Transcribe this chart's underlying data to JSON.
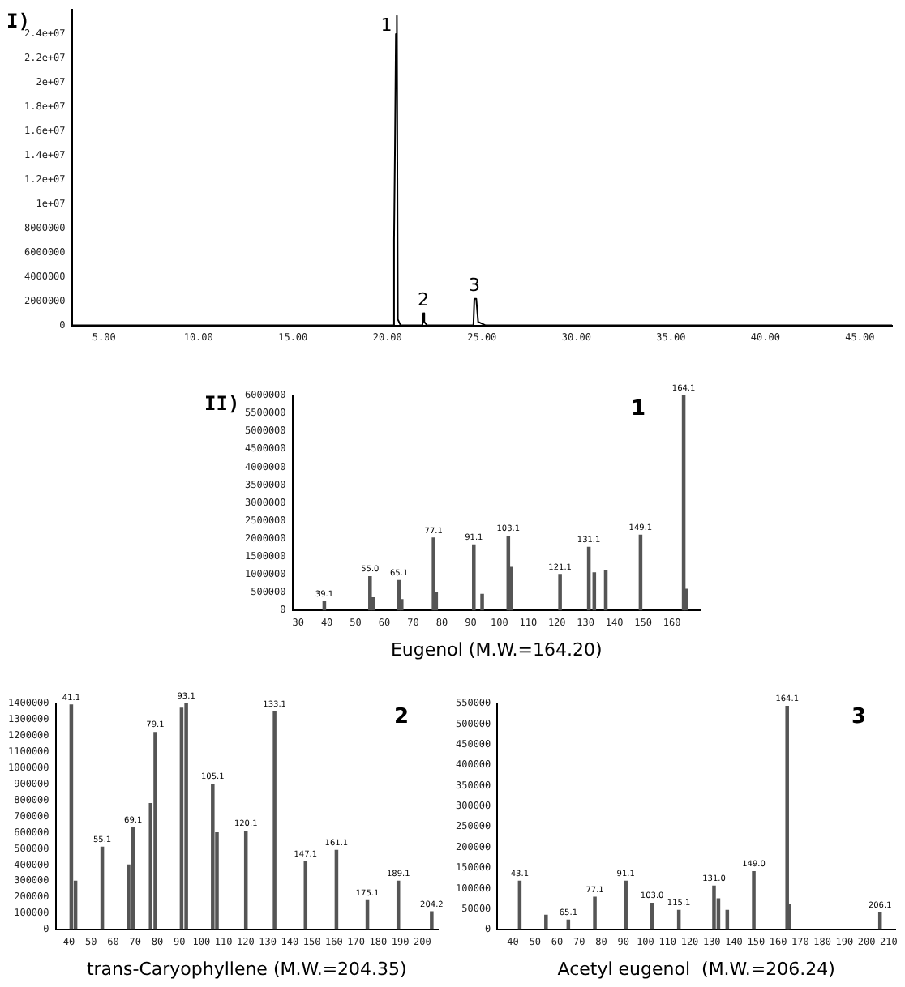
{
  "chart_data": [
    {
      "type": "line",
      "title": "I)",
      "x": [
        3.3,
        20.3,
        20.35,
        20.4,
        20.45,
        20.5,
        20.55,
        20.7,
        21.85,
        21.9,
        21.95,
        22.1,
        24.55,
        24.6,
        24.7,
        24.8,
        25.2,
        46.7
      ],
      "series": [
        {
          "color": "#000000",
          "values": [
            0,
            0,
            7000000,
            14700000,
            24000000,
            25500000,
            500000,
            0,
            0,
            1000000,
            300000,
            0,
            0,
            2200000,
            2200000,
            300000,
            0,
            0
          ]
        }
      ],
      "xlim": [
        3.3,
        46.7
      ],
      "xticks": [
        {
          "value": 5,
          "label": "5.00"
        },
        {
          "value": 10,
          "label": "10.00"
        },
        {
          "value": 15,
          "label": "15.00"
        },
        {
          "value": 20,
          "label": "20.00"
        },
        {
          "value": 25,
          "label": "25.00"
        },
        {
          "value": 30,
          "label": "30.00"
        },
        {
          "value": 35,
          "label": "35.00"
        },
        {
          "value": 40,
          "label": "40.00"
        },
        {
          "value": 45,
          "label": "45.00"
        }
      ],
      "ylim": [
        0,
        26000000
      ],
      "yticks": [
        0,
        2000000,
        4000000,
        6000000,
        8000000,
        {
          "value": 10000000,
          "label": "1e+07"
        },
        {
          "value": 12000000,
          "label": "1.2e+07"
        },
        {
          "value": 14000000,
          "label": "1.4e+07"
        },
        {
          "value": 16000000,
          "label": "1.6e+07"
        },
        {
          "value": 18000000,
          "label": "1.8e+07"
        },
        {
          "value": 20000000,
          "label": "2e+07"
        },
        {
          "value": 22000000,
          "label": "2.2e+07"
        },
        {
          "value": 24000000,
          "label": "2.4e+07"
        }
      ],
      "annotations": [
        {
          "text": "1",
          "x": 20.5,
          "y": 25500000
        },
        {
          "text": "2",
          "x": 21.9,
          "y": 1000000
        },
        {
          "text": "3",
          "x": 24.6,
          "y": 2200000
        }
      ],
      "legend": false,
      "grid": false
    },
    {
      "type": "bar",
      "title": "II)",
      "xlabel": "Eugenol (M.W.=164.20)",
      "x": [
        39.1,
        55.0,
        56,
        65.1,
        66,
        77.1,
        78,
        91.1,
        94,
        103.1,
        104,
        121.1,
        131.1,
        133,
        137,
        149.1,
        164.1,
        165
      ],
      "values": [
        240000,
        940000,
        350000,
        830000,
        300000,
        2020000,
        500000,
        1830000,
        450000,
        2070000,
        1200000,
        1000000,
        1760000,
        1050000,
        1100000,
        2100000,
        6000000,
        590000
      ],
      "color": "#555555",
      "xlim": [
        28,
        170
      ],
      "xticks": [
        30,
        40,
        50,
        60,
        70,
        80,
        90,
        100,
        110,
        120,
        130,
        140,
        150,
        160
      ],
      "ylim": [
        0,
        6000000
      ],
      "yticks": [
        0,
        500000,
        1000000,
        1500000,
        2000000,
        2500000,
        3000000,
        3500000,
        4000000,
        4500000,
        5000000,
        5500000,
        6000000
      ],
      "annotations": [
        "1",
        {
          "text": "39.1",
          "x": 39.1,
          "y": 240000
        },
        {
          "text": "55.0",
          "x": 55.0,
          "y": 940000
        },
        {
          "text": "65.1",
          "x": 65.1,
          "y": 830000
        },
        {
          "text": "77.1",
          "x": 77.1,
          "y": 2020000
        },
        {
          "text": "91.1",
          "x": 91.1,
          "y": 1830000
        },
        {
          "text": "103.1",
          "x": 103.1,
          "y": 2070000
        },
        {
          "text": "121.1",
          "x": 121.1,
          "y": 1000000
        },
        {
          "text": "131.1",
          "x": 131.1,
          "y": 1760000
        },
        {
          "text": "149.1",
          "x": 149.1,
          "y": 2100000
        },
        {
          "text": "164.1",
          "x": 164.1,
          "y": 6000000
        }
      ],
      "legend": false,
      "grid": false
    },
    {
      "type": "bar",
      "xlabel": "trans-Caryophyllene (M.W.=204.35)",
      "x": [
        41.1,
        43,
        55.1,
        67,
        69.1,
        77,
        79.1,
        91,
        93.1,
        105.1,
        107,
        120.1,
        133.1,
        147.1,
        161.1,
        175.1,
        189.1,
        204.2
      ],
      "values": [
        1390000,
        300000,
        510000,
        400000,
        630000,
        780000,
        1220000,
        1370000,
        1400000,
        900000,
        600000,
        610000,
        1350000,
        420000,
        490000,
        180000,
        300000,
        110000
      ],
      "color": "#555555",
      "xlim": [
        34,
        207
      ],
      "xticks": [
        40,
        50,
        60,
        70,
        80,
        90,
        100,
        110,
        120,
        130,
        140,
        150,
        160,
        170,
        180,
        190,
        200
      ],
      "ylim": [
        0,
        1400000
      ],
      "yticks": [
        0,
        100000,
        200000,
        300000,
        400000,
        500000,
        600000,
        700000,
        800000,
        900000,
        1000000,
        1100000,
        1200000,
        1300000,
        1400000
      ],
      "annotations": [
        "2",
        {
          "text": "41.1",
          "x": 41.1,
          "y": 1390000
        },
        {
          "text": "55.1",
          "x": 55.1,
          "y": 510000
        },
        {
          "text": "69.1",
          "x": 69.1,
          "y": 630000
        },
        {
          "text": "79.1",
          "x": 79.1,
          "y": 1220000
        },
        {
          "text": "93.1",
          "x": 93.1,
          "y": 1400000
        },
        {
          "text": "105.1",
          "x": 105.1,
          "y": 900000
        },
        {
          "text": "120.1",
          "x": 120.1,
          "y": 610000
        },
        {
          "text": "133.1",
          "x": 133.1,
          "y": 1350000
        },
        {
          "text": "147.1",
          "x": 147.1,
          "y": 420000
        },
        {
          "text": "161.1",
          "x": 161.1,
          "y": 490000
        },
        {
          "text": "175.1",
          "x": 175.1,
          "y": 180000
        },
        {
          "text": "189.1",
          "x": 189.1,
          "y": 300000
        },
        {
          "text": "204.2",
          "x": 204.2,
          "y": 110000
        }
      ],
      "legend": false,
      "grid": false
    },
    {
      "type": "bar",
      "xlabel": "Acetyl eugenol  (M.W.=206.24)",
      "x": [
        43.1,
        55,
        65.1,
        77.1,
        91.1,
        103.0,
        115.1,
        131.0,
        133,
        137,
        149.0,
        164.1,
        165,
        206.1
      ],
      "values": [
        118000,
        35000,
        23000,
        79000,
        118000,
        64000,
        47000,
        106000,
        75000,
        47000,
        141000,
        543000,
        62000,
        41000
      ],
      "color": "#555555",
      "xlim": [
        33,
        213
      ],
      "xticks": [
        40,
        50,
        60,
        70,
        80,
        90,
        100,
        110,
        120,
        130,
        140,
        150,
        160,
        170,
        180,
        190,
        200,
        210
      ],
      "ylim": [
        0,
        550000
      ],
      "yticks": [
        0,
        50000,
        100000,
        150000,
        200000,
        250000,
        300000,
        350000,
        400000,
        450000,
        500000,
        550000
      ],
      "annotations": [
        "3",
        {
          "text": "43.1",
          "x": 43.1,
          "y": 118000
        },
        {
          "text": "65.1",
          "x": 65.1,
          "y": 23000
        },
        {
          "text": "77.1",
          "x": 77.1,
          "y": 79000
        },
        {
          "text": "91.1",
          "x": 91.1,
          "y": 118000
        },
        {
          "text": "103.0",
          "x": 103.0,
          "y": 64000
        },
        {
          "text": "115.1",
          "x": 115.1,
          "y": 47000
        },
        {
          "text": "131.0",
          "x": 131.0,
          "y": 106000
        },
        {
          "text": "149.0",
          "x": 149.0,
          "y": 141000
        },
        {
          "text": "164.1",
          "x": 164.1,
          "y": 543000
        },
        {
          "text": "206.1",
          "x": 206.1,
          "y": 41000
        }
      ],
      "legend": false,
      "grid": false
    }
  ]
}
